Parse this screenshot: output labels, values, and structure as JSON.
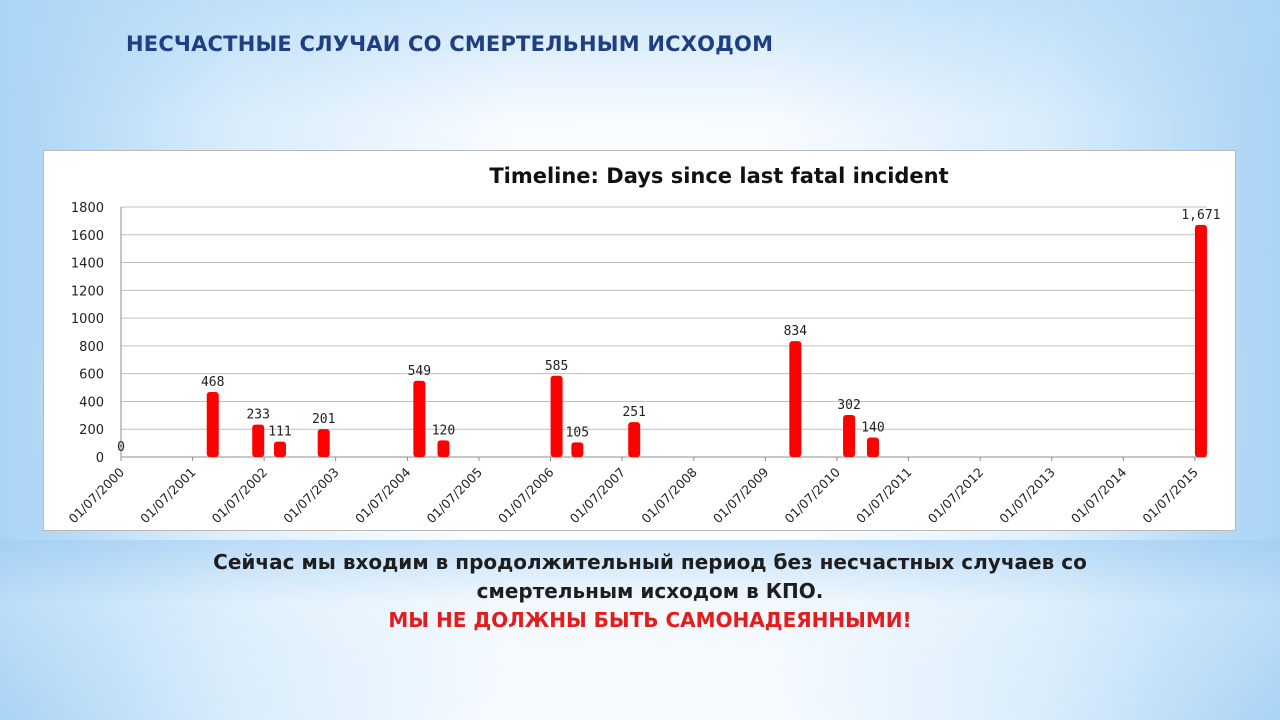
{
  "slide": {
    "title": "НЕСЧАСТНЫЕ СЛУЧАИ СО СМЕРТЕЛЬНЫМ ИСХОДОМ",
    "message_line1": "Сейчас мы входим в  продолжительный период без несчастных случаев со",
    "message_line2": "смертельным исходом в КПО.",
    "warning": "МЫ НЕ ДОЛЖНЫ БЫТЬ САМОНАДЕЯННЫМИ!"
  },
  "colors": {
    "title": "#1f3f83",
    "bar": "#ff0000",
    "warning": "#e41c1c",
    "grid": "#bfbfbf"
  },
  "chart_data": {
    "type": "bar",
    "title": "Timeline:  Days since last fatal incident",
    "xlabel": "",
    "ylabel": "",
    "ylim": [
      0,
      1800
    ],
    "yticks": [
      0,
      200,
      400,
      600,
      800,
      1000,
      1200,
      1400,
      1600,
      1800
    ],
    "grid": true,
    "x_tick_labels": [
      "01/07/2000",
      "01/07/2001",
      "01/07/2002",
      "01/07/2003",
      "01/07/2004",
      "01/07/2005",
      "01/07/2006",
      "01/07/2007",
      "01/07/2008",
      "01/07/2009",
      "01/07/2010",
      "01/07/2011",
      "01/07/2012",
      "01/07/2013",
      "01/07/2014",
      "01/07/2015"
    ],
    "x_range": [
      "2000-07-01",
      "2015-09-01"
    ],
    "series": [
      {
        "points": [
          {
            "date": "2000-07-01",
            "value": 0,
            "label": "0"
          },
          {
            "date": "2001-10-12",
            "value": 468,
            "label": "468"
          },
          {
            "date": "2002-06-01",
            "value": 233,
            "label": "233"
          },
          {
            "date": "2002-09-20",
            "value": 111,
            "label": "111"
          },
          {
            "date": "2003-05-01",
            "value": 201,
            "label": "201"
          },
          {
            "date": "2004-08-31",
            "value": 549,
            "label": "549"
          },
          {
            "date": "2005-01-01",
            "value": 120,
            "label": "120"
          },
          {
            "date": "2006-08-01",
            "value": 585,
            "label": "585"
          },
          {
            "date": "2006-11-15",
            "value": 105,
            "label": "105"
          },
          {
            "date": "2007-09-01",
            "value": 251,
            "label": "251"
          },
          {
            "date": "2009-12-01",
            "value": 834,
            "label": "834"
          },
          {
            "date": "2010-09-01",
            "value": 302,
            "label": "302"
          },
          {
            "date": "2011-01-01",
            "value": 140,
            "label": "140"
          },
          {
            "date": "2015-08-01",
            "value": 1671,
            "label": "1,671"
          }
        ]
      }
    ]
  }
}
